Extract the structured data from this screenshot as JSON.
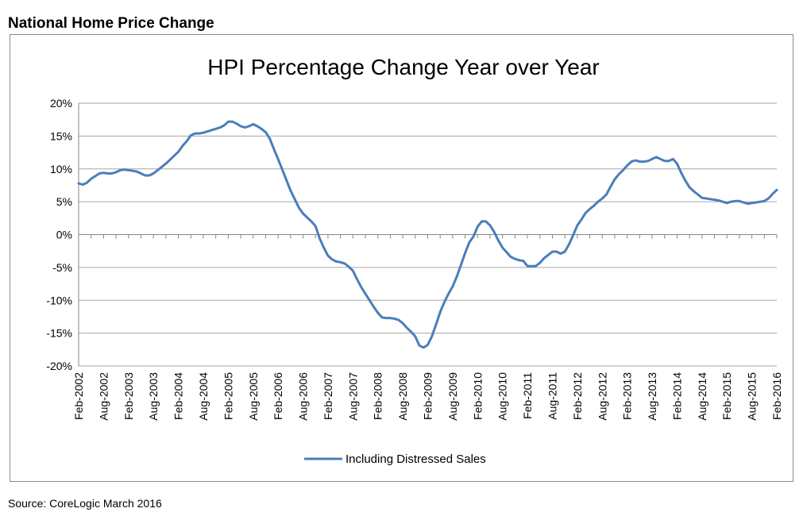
{
  "heading": "National Home Price Change",
  "source": "Source: CoreLogic March 2016",
  "colors": {
    "series": "#4a7ebb",
    "grid": "#a6a6a6",
    "axis": "#868686"
  },
  "chart_data": {
    "type": "line",
    "title": "HPI Percentage Change Year over Year",
    "xlabel": "",
    "ylabel": "",
    "ylim": [
      -20,
      20
    ],
    "y_ticks": [
      "20%",
      "15%",
      "10%",
      "5%",
      "0%",
      "-5%",
      "-10%",
      "-15%",
      "-20%"
    ],
    "x_tick_labels": [
      "Feb-2002",
      "Aug-2002",
      "Feb-2003",
      "Aug-2003",
      "Feb-2004",
      "Aug-2004",
      "Feb-2005",
      "Aug-2005",
      "Feb-2006",
      "Aug-2006",
      "Feb-2007",
      "Aug-2007",
      "Feb-2008",
      "Aug-2008",
      "Feb-2009",
      "Aug-2009",
      "Feb-2010",
      "Aug-2010",
      "Feb-2011",
      "Aug-2011",
      "Feb-2012",
      "Aug-2012",
      "Feb-2013",
      "Aug-2013",
      "Feb-2014",
      "Aug-2014",
      "Feb-2015",
      "Aug-2015",
      "Feb-2016"
    ],
    "grid": true,
    "legend_position": "bottom",
    "series": [
      {
        "name": "Including Distressed Sales",
        "color": "#4a7ebb",
        "points": [
          [
            "Feb-2002",
            7.8
          ],
          [
            "Mar-2002",
            7.6
          ],
          [
            "Apr-2002",
            7.9
          ],
          [
            "May-2002",
            8.5
          ],
          [
            "Jun-2002",
            8.9
          ],
          [
            "Jul-2002",
            9.3
          ],
          [
            "Aug-2002",
            9.4
          ],
          [
            "Sep-2002",
            9.3
          ],
          [
            "Oct-2002",
            9.3
          ],
          [
            "Nov-2002",
            9.5
          ],
          [
            "Dec-2002",
            9.8
          ],
          [
            "Jan-2003",
            9.9
          ],
          [
            "Feb-2003",
            9.8
          ],
          [
            "Mar-2003",
            9.7
          ],
          [
            "Apr-2003",
            9.6
          ],
          [
            "May-2003",
            9.3
          ],
          [
            "Jun-2003",
            9.0
          ],
          [
            "Jul-2003",
            9.0
          ],
          [
            "Aug-2003",
            9.3
          ],
          [
            "Sep-2003",
            9.8
          ],
          [
            "Oct-2003",
            10.3
          ],
          [
            "Nov-2003",
            10.8
          ],
          [
            "Dec-2003",
            11.4
          ],
          [
            "Jan-2004",
            12.0
          ],
          [
            "Feb-2004",
            12.6
          ],
          [
            "Mar-2004",
            13.5
          ],
          [
            "Apr-2004",
            14.2
          ],
          [
            "May-2004",
            15.1
          ],
          [
            "Jun-2004",
            15.4
          ],
          [
            "Jul-2004",
            15.4
          ],
          [
            "Aug-2004",
            15.5
          ],
          [
            "Sep-2004",
            15.7
          ],
          [
            "Oct-2004",
            15.9
          ],
          [
            "Nov-2004",
            16.1
          ],
          [
            "Dec-2004",
            16.3
          ],
          [
            "Jan-2005",
            16.6
          ],
          [
            "Feb-2005",
            17.2
          ],
          [
            "Mar-2005",
            17.2
          ],
          [
            "Apr-2005",
            16.9
          ],
          [
            "May-2005",
            16.5
          ],
          [
            "Jun-2005",
            16.3
          ],
          [
            "Jul-2005",
            16.5
          ],
          [
            "Aug-2005",
            16.8
          ],
          [
            "Sep-2005",
            16.5
          ],
          [
            "Oct-2005",
            16.1
          ],
          [
            "Nov-2005",
            15.6
          ],
          [
            "Dec-2005",
            14.6
          ],
          [
            "Jan-2006",
            13.0
          ],
          [
            "Feb-2006",
            11.5
          ],
          [
            "Mar-2006",
            9.9
          ],
          [
            "Apr-2006",
            8.3
          ],
          [
            "May-2006",
            6.7
          ],
          [
            "Jun-2006",
            5.4
          ],
          [
            "Jul-2006",
            4.1
          ],
          [
            "Aug-2006",
            3.2
          ],
          [
            "Sep-2006",
            2.6
          ],
          [
            "Oct-2006",
            2.0
          ],
          [
            "Nov-2006",
            1.3
          ],
          [
            "Dec-2006",
            -0.6
          ],
          [
            "Jan-2007",
            -2.0
          ],
          [
            "Feb-2007",
            -3.2
          ],
          [
            "Mar-2007",
            -3.8
          ],
          [
            "Apr-2007",
            -4.1
          ],
          [
            "May-2007",
            -4.2
          ],
          [
            "Jun-2007",
            -4.4
          ],
          [
            "Jul-2007",
            -4.9
          ],
          [
            "Aug-2007",
            -5.5
          ],
          [
            "Sep-2007",
            -6.8
          ],
          [
            "Oct-2007",
            -8.0
          ],
          [
            "Nov-2007",
            -9.0
          ],
          [
            "Dec-2007",
            -10.0
          ],
          [
            "Jan-2008",
            -11.0
          ],
          [
            "Feb-2008",
            -11.9
          ],
          [
            "Mar-2008",
            -12.6
          ],
          [
            "Apr-2008",
            -12.7
          ],
          [
            "May-2008",
            -12.7
          ],
          [
            "Jun-2008",
            -12.8
          ],
          [
            "Jul-2008",
            -13.0
          ],
          [
            "Aug-2008",
            -13.5
          ],
          [
            "Sep-2008",
            -14.2
          ],
          [
            "Oct-2008",
            -14.8
          ],
          [
            "Nov-2008",
            -15.5
          ],
          [
            "Dec-2008",
            -16.9
          ],
          [
            "Jan-2009",
            -17.2
          ],
          [
            "Feb-2009",
            -16.8
          ],
          [
            "Mar-2009",
            -15.5
          ],
          [
            "Apr-2009",
            -13.7
          ],
          [
            "May-2009",
            -11.8
          ],
          [
            "Jun-2009",
            -10.3
          ],
          [
            "Jul-2009",
            -9.0
          ],
          [
            "Aug-2009",
            -7.9
          ],
          [
            "Sep-2009",
            -6.4
          ],
          [
            "Oct-2009",
            -4.6
          ],
          [
            "Nov-2009",
            -2.8
          ],
          [
            "Dec-2009",
            -1.2
          ],
          [
            "Jan-2010",
            -0.3
          ],
          [
            "Feb-2010",
            1.2
          ],
          [
            "Mar-2010",
            2.0
          ],
          [
            "Apr-2010",
            2.0
          ],
          [
            "May-2010",
            1.4
          ],
          [
            "Jun-2010",
            0.4
          ],
          [
            "Jul-2010",
            -0.9
          ],
          [
            "Aug-2010",
            -2.0
          ],
          [
            "Sep-2010",
            -2.7
          ],
          [
            "Oct-2010",
            -3.4
          ],
          [
            "Nov-2010",
            -3.7
          ],
          [
            "Dec-2010",
            -3.9
          ],
          [
            "Jan-2011",
            -4.0
          ],
          [
            "Feb-2011",
            -4.8
          ],
          [
            "Mar-2011",
            -4.8
          ],
          [
            "Apr-2011",
            -4.8
          ],
          [
            "May-2011",
            -4.3
          ],
          [
            "Jun-2011",
            -3.6
          ],
          [
            "Jul-2011",
            -3.1
          ],
          [
            "Aug-2011",
            -2.6
          ],
          [
            "Sep-2011",
            -2.6
          ],
          [
            "Oct-2011",
            -2.9
          ],
          [
            "Nov-2011",
            -2.6
          ],
          [
            "Dec-2011",
            -1.5
          ],
          [
            "Jan-2012",
            -0.1
          ],
          [
            "Feb-2012",
            1.4
          ],
          [
            "Mar-2012",
            2.3
          ],
          [
            "Apr-2012",
            3.3
          ],
          [
            "May-2012",
            3.9
          ],
          [
            "Jun-2012",
            4.4
          ],
          [
            "Jul-2012",
            5.0
          ],
          [
            "Aug-2012",
            5.5
          ],
          [
            "Sep-2012",
            6.1
          ],
          [
            "Oct-2012",
            7.3
          ],
          [
            "Nov-2012",
            8.4
          ],
          [
            "Dec-2012",
            9.2
          ],
          [
            "Jan-2013",
            9.8
          ],
          [
            "Feb-2013",
            10.5
          ],
          [
            "Mar-2013",
            11.1
          ],
          [
            "Apr-2013",
            11.3
          ],
          [
            "May-2013",
            11.1
          ],
          [
            "Jun-2013",
            11.1
          ],
          [
            "Jul-2013",
            11.2
          ],
          [
            "Aug-2013",
            11.5
          ],
          [
            "Sep-2013",
            11.8
          ],
          [
            "Oct-2013",
            11.5
          ],
          [
            "Nov-2013",
            11.2
          ],
          [
            "Dec-2013",
            11.2
          ],
          [
            "Jan-2014",
            11.5
          ],
          [
            "Feb-2014",
            10.8
          ],
          [
            "Mar-2014",
            9.4
          ],
          [
            "Apr-2014",
            8.2
          ],
          [
            "May-2014",
            7.2
          ],
          [
            "Jun-2014",
            6.6
          ],
          [
            "Jul-2014",
            6.1
          ],
          [
            "Aug-2014",
            5.6
          ],
          [
            "Sep-2014",
            5.5
          ],
          [
            "Oct-2014",
            5.4
          ],
          [
            "Nov-2014",
            5.3
          ],
          [
            "Dec-2014",
            5.2
          ],
          [
            "Jan-2015",
            5.0
          ],
          [
            "Feb-2015",
            4.8
          ],
          [
            "Mar-2015",
            5.0
          ],
          [
            "Apr-2015",
            5.1
          ],
          [
            "May-2015",
            5.1
          ],
          [
            "Jun-2015",
            4.9
          ],
          [
            "Jul-2015",
            4.7
          ],
          [
            "Aug-2015",
            4.8
          ],
          [
            "Sep-2015",
            4.9
          ],
          [
            "Oct-2015",
            5.0
          ],
          [
            "Nov-2015",
            5.1
          ],
          [
            "Dec-2015",
            5.5
          ],
          [
            "Jan-2016",
            6.2
          ],
          [
            "Feb-2016",
            6.8
          ]
        ]
      }
    ]
  }
}
